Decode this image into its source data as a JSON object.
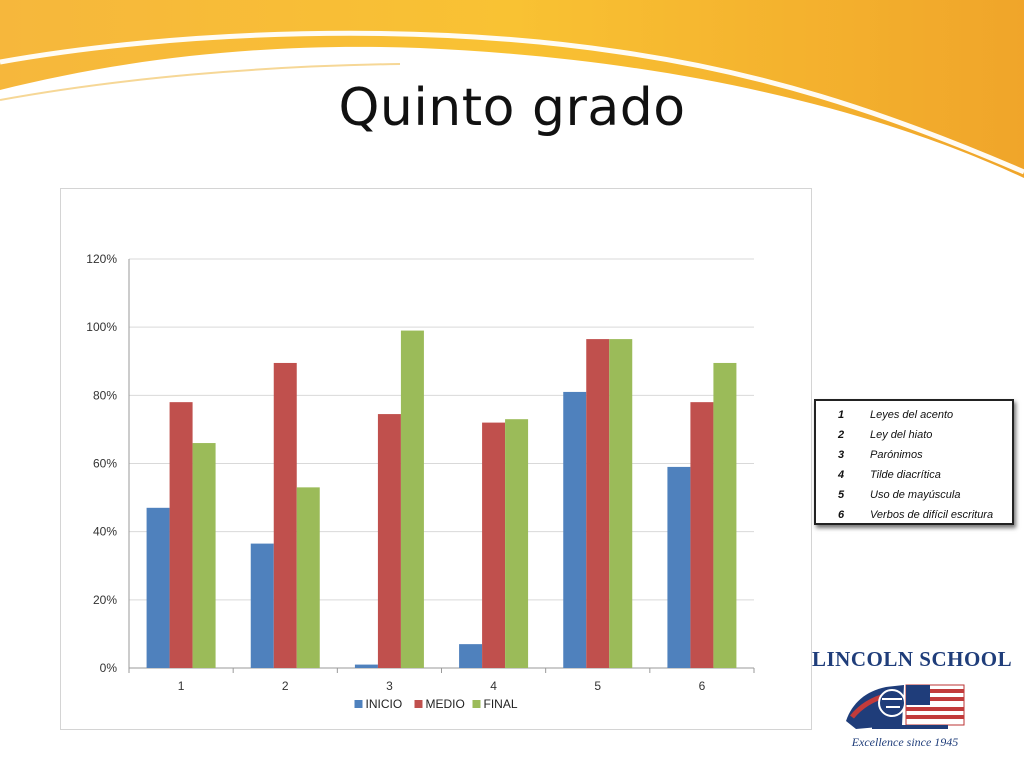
{
  "slide": {
    "title": "Quinto grado"
  },
  "colors": {
    "inicio": "#4f81bd",
    "medio": "#c0504d",
    "final": "#9bbb59"
  },
  "chart_data": {
    "type": "bar",
    "categories": [
      "1",
      "2",
      "3",
      "4",
      "5",
      "6"
    ],
    "series": [
      {
        "name": "INICIO",
        "values": [
          47,
          36.5,
          1,
          7,
          81,
          59
        ]
      },
      {
        "name": "MEDIO",
        "values": [
          78,
          89.5,
          74.5,
          72,
          96.5,
          78
        ]
      },
      {
        "name": "FINAL",
        "values": [
          66,
          53,
          99,
          73,
          96.5,
          89.5
        ]
      }
    ],
    "ylim": [
      0,
      120
    ],
    "yticks": [
      "0%",
      "20%",
      "40%",
      "60%",
      "80%",
      "100%",
      "120%"
    ],
    "grid": true,
    "legend_position": "bottom"
  },
  "legend_table": {
    "rows": [
      {
        "num": "1",
        "text": "Leyes del acento"
      },
      {
        "num": "2",
        "text": "Ley del hiato"
      },
      {
        "num": "3",
        "text": "Parónimos"
      },
      {
        "num": "4",
        "text": "Tilde diacrítica"
      },
      {
        "num": "5",
        "text": "Uso de mayúscula"
      },
      {
        "num": "6",
        "text": "Verbos de difícil escritura"
      }
    ]
  },
  "logo": {
    "name": "LINCOLN SCHOOL",
    "tagline": "Excellence since 1945"
  }
}
